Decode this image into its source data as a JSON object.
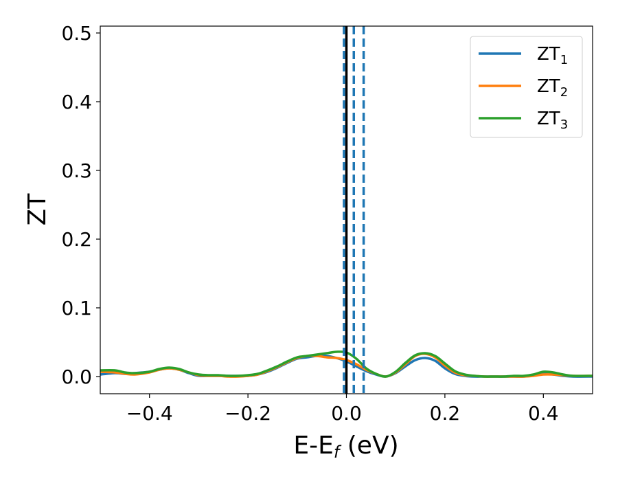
{
  "chart_data": {
    "type": "line",
    "xlabel": {
      "base": "E-E",
      "sub": "f",
      "rest": " (eV)"
    },
    "ylabel": "ZT",
    "xlim": [
      -0.5,
      0.5
    ],
    "ylim": [
      -0.025,
      0.51
    ],
    "xticks": [
      -0.4,
      -0.2,
      0.0,
      0.2,
      0.4
    ],
    "xtick_labels": [
      "−0.4",
      "−0.2",
      "0.0",
      "0.2",
      "0.4"
    ],
    "yticks": [
      0.0,
      0.1,
      0.2,
      0.3,
      0.4,
      0.5
    ],
    "ytick_labels": [
      "0.0",
      "0.1",
      "0.2",
      "0.3",
      "0.4",
      "0.5"
    ],
    "grid": false,
    "legend_position": "top-right",
    "vertical_lines": [
      {
        "x": 0.0,
        "style": "solid",
        "color": "#000000"
      },
      {
        "x": -0.005,
        "style": "dashed",
        "color": "#1f77b4"
      },
      {
        "x": 0.015,
        "style": "dashed",
        "color": "#1f77b4"
      },
      {
        "x": 0.035,
        "style": "dashed",
        "color": "#1f77b4"
      }
    ],
    "x": [
      -0.5,
      -0.47,
      -0.45,
      -0.43,
      -0.4,
      -0.38,
      -0.36,
      -0.34,
      -0.32,
      -0.3,
      -0.28,
      -0.26,
      -0.24,
      -0.22,
      -0.2,
      -0.18,
      -0.16,
      -0.14,
      -0.12,
      -0.1,
      -0.08,
      -0.06,
      -0.04,
      -0.02,
      0.0,
      0.02,
      0.04,
      0.06,
      0.08,
      0.1,
      0.12,
      0.14,
      0.16,
      0.18,
      0.2,
      0.22,
      0.24,
      0.26,
      0.28,
      0.3,
      0.32,
      0.34,
      0.36,
      0.38,
      0.4,
      0.42,
      0.44,
      0.46,
      0.5
    ],
    "series": [
      {
        "name": "ZT",
        "subscript": "1",
        "color": "#1f77b4",
        "values": [
          0.003,
          0.005,
          0.004,
          0.005,
          0.007,
          0.01,
          0.012,
          0.01,
          0.005,
          0.001,
          0.001,
          0.001,
          0.001,
          0.001,
          0.001,
          0.003,
          0.007,
          0.013,
          0.02,
          0.026,
          0.028,
          0.03,
          0.03,
          0.027,
          0.022,
          0.015,
          0.008,
          0.003,
          0.0,
          0.005,
          0.015,
          0.024,
          0.027,
          0.023,
          0.012,
          0.004,
          0.001,
          0.0,
          0.0,
          0.0,
          0.0,
          0.0,
          0.0,
          0.002,
          0.004,
          0.003,
          0.001,
          0.0,
          0.0
        ]
      },
      {
        "name": "ZT",
        "subscript": "2",
        "color": "#ff7f0e",
        "values": [
          0.007,
          0.006,
          0.004,
          0.003,
          0.006,
          0.01,
          0.012,
          0.01,
          0.006,
          0.002,
          0.001,
          0.001,
          0.0,
          0.0,
          0.001,
          0.003,
          0.008,
          0.014,
          0.021,
          0.027,
          0.03,
          0.03,
          0.028,
          0.027,
          0.024,
          0.018,
          0.01,
          0.004,
          0.0,
          0.006,
          0.018,
          0.03,
          0.033,
          0.028,
          0.016,
          0.006,
          0.002,
          0.001,
          0.0,
          0.0,
          0.0,
          0.0,
          0.0,
          0.001,
          0.003,
          0.003,
          0.002,
          0.001,
          0.001
        ]
      },
      {
        "name": "ZT",
        "subscript": "3",
        "color": "#2ca02c",
        "values": [
          0.009,
          0.009,
          0.006,
          0.005,
          0.007,
          0.011,
          0.013,
          0.011,
          0.006,
          0.003,
          0.002,
          0.002,
          0.001,
          0.001,
          0.002,
          0.004,
          0.009,
          0.015,
          0.022,
          0.028,
          0.03,
          0.032,
          0.034,
          0.036,
          0.035,
          0.026,
          0.012,
          0.004,
          0.0,
          0.007,
          0.02,
          0.031,
          0.034,
          0.03,
          0.019,
          0.008,
          0.003,
          0.001,
          0.0,
          0.0,
          0.0,
          0.001,
          0.001,
          0.003,
          0.007,
          0.006,
          0.003,
          0.001,
          0.001
        ]
      }
    ]
  }
}
